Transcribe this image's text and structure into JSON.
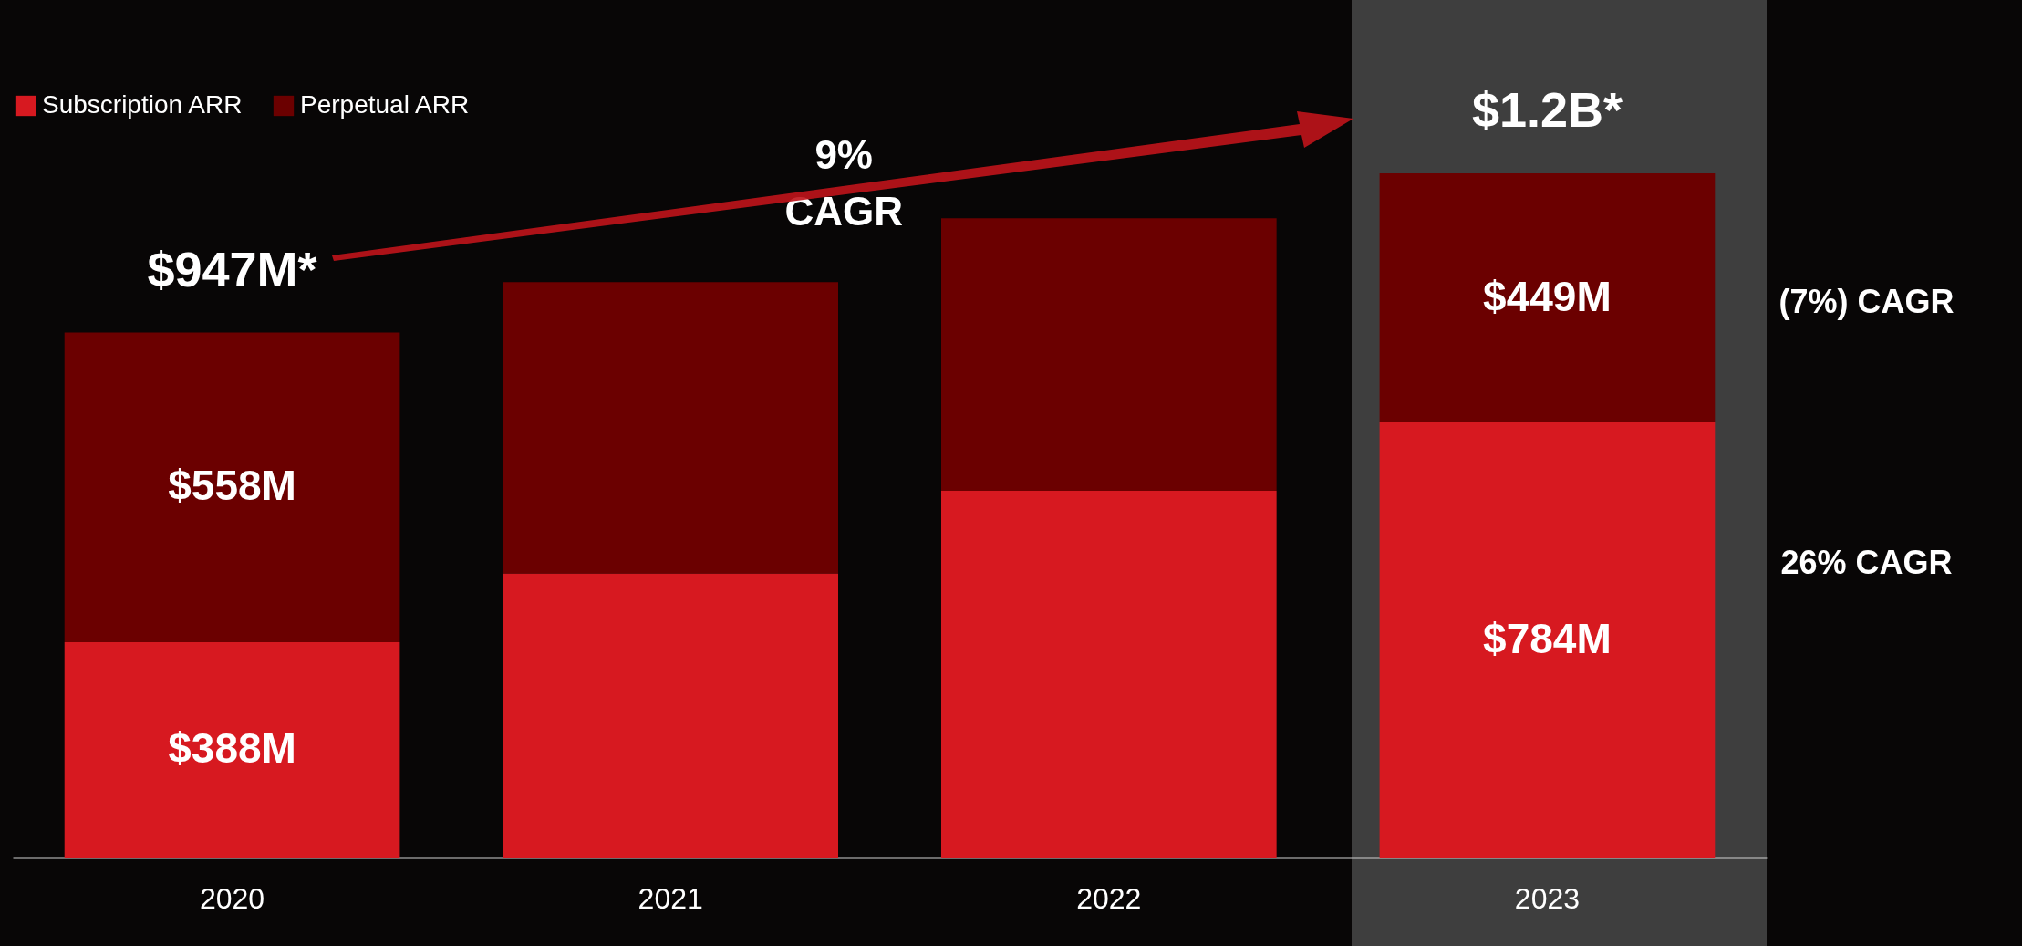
{
  "chart_data": {
    "type": "bar",
    "stacked": true,
    "categories": [
      "2020",
      "2021",
      "2022",
      "2023"
    ],
    "series": [
      {
        "name": "Subscription ARR",
        "color": "#d71920",
        "values": [
          388,
          512,
          661,
          784
        ],
        "value_labels": [
          "$388M",
          null,
          null,
          "$784M"
        ]
      },
      {
        "name": "Perpetual ARR",
        "color": "#6b0000",
        "values": [
          558,
          525,
          491,
          449
        ],
        "value_labels": [
          "$558M",
          null,
          null,
          "$449M"
        ]
      }
    ],
    "totals": [
      "$947M*",
      null,
      null,
      "$1.2B*"
    ],
    "annotations": [
      "9% CAGR",
      "(7%) CAGR",
      "26% CAGR"
    ],
    "legend": "top left"
  }
}
